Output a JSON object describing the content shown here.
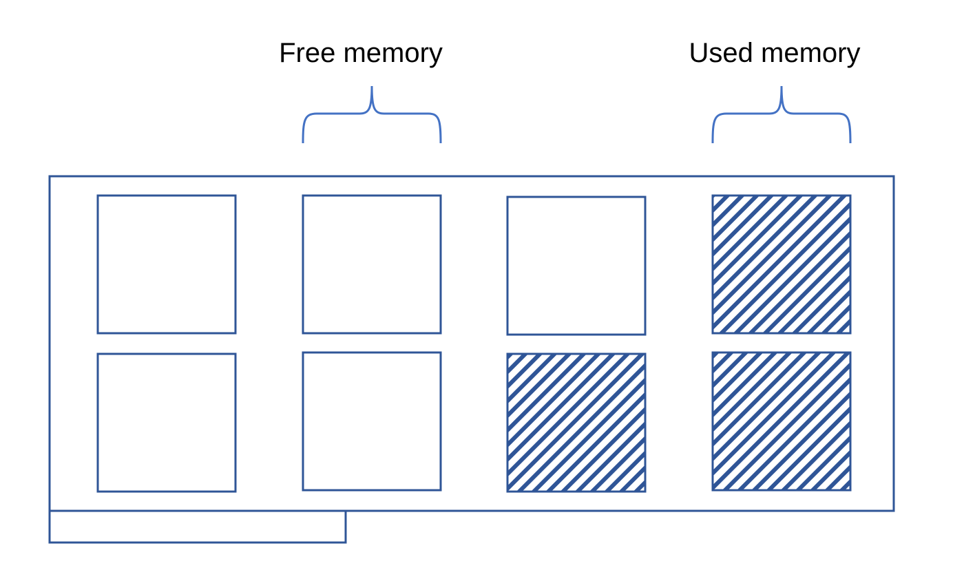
{
  "labels": {
    "free": "Free memory",
    "used": "Used memory"
  },
  "colors": {
    "stroke": "#2f5597",
    "hatch": "#2f5597",
    "background": "#ffffff",
    "text": "#000000"
  },
  "memory_grid": {
    "rows": 2,
    "columns": 4,
    "cells": [
      {
        "row": 1,
        "col": 1,
        "state": "free"
      },
      {
        "row": 1,
        "col": 2,
        "state": "free"
      },
      {
        "row": 1,
        "col": 3,
        "state": "free"
      },
      {
        "row": 1,
        "col": 4,
        "state": "used"
      },
      {
        "row": 2,
        "col": 1,
        "state": "free"
      },
      {
        "row": 2,
        "col": 2,
        "state": "free"
      },
      {
        "row": 2,
        "col": 3,
        "state": "used"
      },
      {
        "row": 2,
        "col": 4,
        "state": "used"
      }
    ]
  }
}
